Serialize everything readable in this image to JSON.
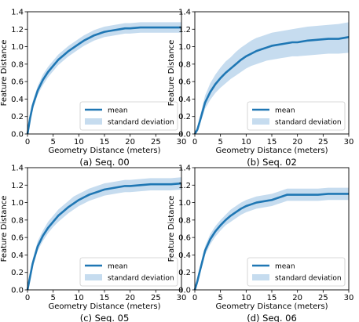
{
  "chart_data": [
    {
      "type": "line",
      "caption": "(a) Seq. 00",
      "xlabel": "Geometry Distance (meters)",
      "ylabel": "Feature Distance",
      "xlim": [
        0,
        30
      ],
      "ylim": [
        0,
        1.4
      ],
      "xticks": [
        0,
        5,
        10,
        15,
        20,
        25,
        30
      ],
      "yticks": [
        0.0,
        0.2,
        0.4,
        0.6,
        0.8,
        1.0,
        1.2,
        1.4
      ],
      "grid": false,
      "legend_position": "lower-right",
      "series": [
        {
          "name": "mean",
          "x": [
            0,
            0.5,
            1,
            2,
            3,
            4,
            5,
            6,
            7,
            8,
            9,
            10,
            11,
            12,
            13,
            14,
            15,
            16,
            17,
            18,
            19,
            20,
            22,
            24,
            26,
            28,
            30
          ],
          "values": [
            0.0,
            0.18,
            0.32,
            0.5,
            0.62,
            0.71,
            0.78,
            0.85,
            0.9,
            0.95,
            0.99,
            1.03,
            1.07,
            1.1,
            1.13,
            1.15,
            1.17,
            1.18,
            1.19,
            1.2,
            1.21,
            1.21,
            1.22,
            1.22,
            1.22,
            1.22,
            1.22
          ]
        },
        {
          "name": "standard deviation",
          "lower": [
            0.0,
            0.15,
            0.28,
            0.45,
            0.56,
            0.65,
            0.72,
            0.79,
            0.84,
            0.89,
            0.93,
            0.97,
            1.01,
            1.04,
            1.07,
            1.09,
            1.11,
            1.12,
            1.13,
            1.14,
            1.15,
            1.15,
            1.16,
            1.16,
            1.16,
            1.16,
            1.16
          ],
          "upper": [
            0.02,
            0.22,
            0.37,
            0.55,
            0.68,
            0.77,
            0.84,
            0.91,
            0.96,
            1.01,
            1.05,
            1.09,
            1.13,
            1.16,
            1.19,
            1.21,
            1.23,
            1.24,
            1.25,
            1.26,
            1.27,
            1.27,
            1.28,
            1.28,
            1.28,
            1.28,
            1.28
          ]
        }
      ]
    },
    {
      "type": "line",
      "caption": "(b) Seq. 02",
      "xlabel": "Geometry Distance (meters)",
      "ylabel": "Feature Distance",
      "xlim": [
        0,
        30
      ],
      "ylim": [
        0,
        1.4
      ],
      "xticks": [
        0,
        5,
        10,
        15,
        20,
        25,
        30
      ],
      "yticks": [
        0.0,
        0.2,
        0.4,
        0.6,
        0.8,
        1.0,
        1.2,
        1.4
      ],
      "grid": false,
      "legend_position": "lower-right",
      "series": [
        {
          "name": "mean",
          "x": [
            0,
            0.5,
            1,
            2,
            3,
            4,
            5,
            6,
            7,
            8,
            9,
            10,
            11,
            12,
            13,
            14,
            15,
            16,
            17,
            18,
            19,
            20,
            22,
            24,
            26,
            28,
            30
          ],
          "values": [
            0.0,
            0.05,
            0.15,
            0.36,
            0.48,
            0.57,
            0.64,
            0.7,
            0.75,
            0.8,
            0.85,
            0.89,
            0.92,
            0.95,
            0.97,
            0.99,
            1.01,
            1.02,
            1.03,
            1.04,
            1.05,
            1.05,
            1.07,
            1.08,
            1.09,
            1.09,
            1.11
          ]
        },
        {
          "name": "standard deviation",
          "lower": [
            0.0,
            0.03,
            0.11,
            0.29,
            0.39,
            0.47,
            0.53,
            0.58,
            0.63,
            0.67,
            0.71,
            0.75,
            0.78,
            0.8,
            0.82,
            0.84,
            0.85,
            0.86,
            0.87,
            0.88,
            0.89,
            0.89,
            0.9,
            0.91,
            0.92,
            0.92,
            0.93
          ]
        },
        {
          "name": "",
          "upper": [
            0.02,
            0.08,
            0.2,
            0.44,
            0.58,
            0.68,
            0.76,
            0.83,
            0.88,
            0.94,
            0.99,
            1.03,
            1.07,
            1.1,
            1.12,
            1.14,
            1.16,
            1.17,
            1.18,
            1.19,
            1.2,
            1.21,
            1.23,
            1.24,
            1.25,
            1.26,
            1.28
          ]
        }
      ]
    },
    {
      "type": "line",
      "caption": "(c) Seq. 05",
      "xlabel": "Geometry Distance (meters)",
      "ylabel": "Feature Distance",
      "xlim": [
        0,
        30
      ],
      "ylim": [
        0,
        1.4
      ],
      "xticks": [
        0,
        5,
        10,
        15,
        20,
        25,
        30
      ],
      "yticks": [
        0.0,
        0.2,
        0.4,
        0.6,
        0.8,
        1.0,
        1.2,
        1.4
      ],
      "grid": false,
      "legend_position": "lower-right",
      "series": [
        {
          "name": "mean",
          "x": [
            0,
            0.5,
            1,
            2,
            3,
            4,
            5,
            6,
            7,
            8,
            9,
            10,
            11,
            12,
            13,
            14,
            15,
            16,
            17,
            18,
            19,
            20,
            22,
            24,
            26,
            28,
            30
          ],
          "values": [
            0.0,
            0.15,
            0.3,
            0.5,
            0.62,
            0.71,
            0.78,
            0.85,
            0.9,
            0.95,
            0.99,
            1.03,
            1.06,
            1.09,
            1.11,
            1.13,
            1.15,
            1.16,
            1.17,
            1.18,
            1.19,
            1.19,
            1.2,
            1.21,
            1.21,
            1.21,
            1.22
          ]
        },
        {
          "name": "standard deviation",
          "lower": [
            0.0,
            0.12,
            0.26,
            0.45,
            0.56,
            0.65,
            0.72,
            0.78,
            0.83,
            0.88,
            0.92,
            0.96,
            0.99,
            1.02,
            1.04,
            1.06,
            1.08,
            1.09,
            1.1,
            1.11,
            1.12,
            1.12,
            1.13,
            1.14,
            1.14,
            1.14,
            1.15
          ]
        },
        {
          "name": "",
          "upper": [
            0.02,
            0.19,
            0.35,
            0.56,
            0.68,
            0.78,
            0.85,
            0.92,
            0.97,
            1.02,
            1.07,
            1.1,
            1.13,
            1.16,
            1.18,
            1.2,
            1.22,
            1.23,
            1.24,
            1.25,
            1.26,
            1.26,
            1.27,
            1.28,
            1.28,
            1.28,
            1.29
          ]
        }
      ]
    },
    {
      "type": "line",
      "caption": "(d) Seq. 06",
      "xlabel": "Geometry Distance (meters)",
      "ylabel": "Feature Distance",
      "xlim": [
        0,
        30
      ],
      "ylim": [
        0,
        1.4
      ],
      "xticks": [
        0,
        5,
        10,
        15,
        20,
        25,
        30
      ],
      "yticks": [
        0.0,
        0.2,
        0.4,
        0.6,
        0.8,
        1.0,
        1.2,
        1.4
      ],
      "grid": false,
      "legend_position": "lower-right",
      "series": [
        {
          "name": "mean",
          "x": [
            0,
            0.5,
            1,
            2,
            3,
            4,
            5,
            6,
            7,
            8,
            9,
            10,
            11,
            12,
            13,
            14,
            15,
            16,
            17,
            18,
            19,
            20,
            22,
            24,
            26,
            28,
            30
          ],
          "values": [
            0.0,
            0.1,
            0.22,
            0.45,
            0.58,
            0.67,
            0.74,
            0.8,
            0.85,
            0.89,
            0.93,
            0.96,
            0.98,
            1.0,
            1.01,
            1.02,
            1.03,
            1.05,
            1.07,
            1.09,
            1.09,
            1.09,
            1.09,
            1.09,
            1.1,
            1.1,
            1.1
          ]
        },
        {
          "name": "standard deviation",
          "lower": [
            0.0,
            0.07,
            0.18,
            0.4,
            0.52,
            0.61,
            0.68,
            0.74,
            0.78,
            0.82,
            0.86,
            0.89,
            0.91,
            0.93,
            0.94,
            0.95,
            0.96,
            0.98,
            1.0,
            1.02,
            1.02,
            1.02,
            1.02,
            1.02,
            1.03,
            1.03,
            1.03
          ]
        },
        {
          "name": "",
          "upper": [
            0.02,
            0.13,
            0.26,
            0.5,
            0.64,
            0.73,
            0.8,
            0.86,
            0.92,
            0.96,
            1.0,
            1.03,
            1.05,
            1.07,
            1.08,
            1.09,
            1.1,
            1.12,
            1.14,
            1.16,
            1.16,
            1.16,
            1.16,
            1.16,
            1.17,
            1.17,
            1.17
          ]
        }
      ]
    }
  ],
  "colors": {
    "mean": "#1f77b4",
    "band": "#c6dcef"
  }
}
